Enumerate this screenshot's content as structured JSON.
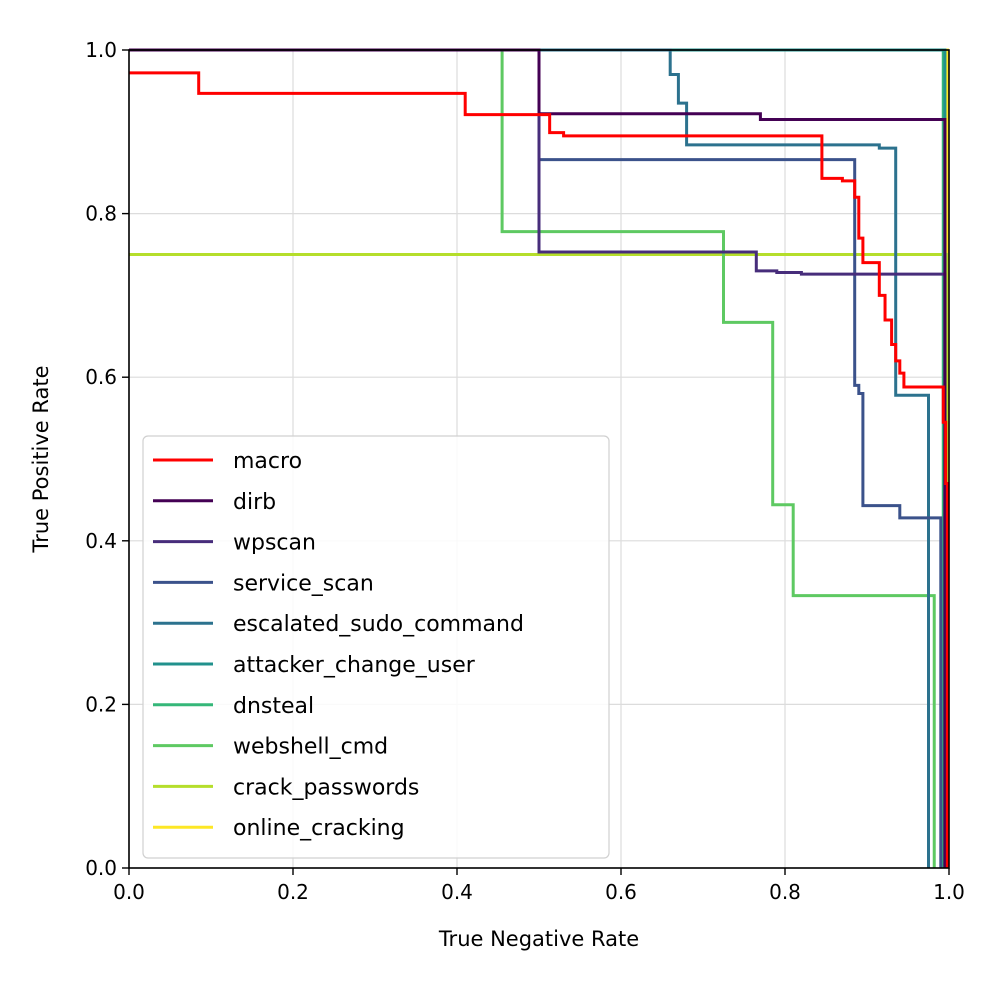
{
  "chart_data": {
    "type": "line",
    "title": "",
    "xlabel": "True Negative Rate",
    "ylabel": "True Positive Rate",
    "xlim": [
      0.0,
      1.0
    ],
    "ylim": [
      0.0,
      1.0
    ],
    "xticks": [
      "0.0",
      "0.2",
      "0.4",
      "0.6",
      "0.8",
      "1.0"
    ],
    "yticks": [
      "0.0",
      "0.2",
      "0.4",
      "0.6",
      "0.8",
      "1.0"
    ],
    "xtick_values": [
      0.0,
      0.2,
      0.4,
      0.6,
      0.8,
      1.0
    ],
    "ytick_values": [
      0.0,
      0.2,
      0.4,
      0.6,
      0.8,
      1.0
    ],
    "grid": true,
    "legend_position": "lower-left",
    "series": [
      {
        "name": "online_cracking",
        "color": "#fde725",
        "x": [
          0.0,
          0.998,
          0.998
        ],
        "y": [
          1.0,
          1.0,
          0.0
        ]
      },
      {
        "name": "crack_passwords",
        "color": "#b5de2b",
        "x": [
          0.0,
          0.997,
          0.997
        ],
        "y": [
          0.75,
          0.75,
          0.0
        ]
      },
      {
        "name": "dnsteal",
        "color": "#35b779",
        "x": [
          0.0,
          0.993,
          0.993
        ],
        "y": [
          1.0,
          1.0,
          0.0
        ]
      },
      {
        "name": "attacker_change_user",
        "color": "#21918c",
        "x": [
          0.0,
          0.995,
          0.995
        ],
        "y": [
          1.0,
          1.0,
          0.0
        ]
      },
      {
        "name": "webshell_cmd",
        "color": "#5ec962",
        "x": [
          0.0,
          0.455,
          0.455,
          0.725,
          0.725,
          0.785,
          0.785,
          0.81,
          0.81,
          0.982,
          0.982
        ],
        "y": [
          1.0,
          1.0,
          0.778,
          0.778,
          0.667,
          0.667,
          0.444,
          0.444,
          0.333,
          0.333,
          0.0
        ]
      },
      {
        "name": "escalated_sudo_command",
        "color": "#2c728e",
        "x": [
          0.0,
          0.66,
          0.66,
          0.67,
          0.67,
          0.68,
          0.68,
          0.915,
          0.915,
          0.935,
          0.935,
          0.975,
          0.975
        ],
        "y": [
          1.0,
          1.0,
          0.97,
          0.97,
          0.935,
          0.935,
          0.884,
          0.884,
          0.88,
          0.88,
          0.578,
          0.578,
          0.0
        ]
      },
      {
        "name": "service_scan",
        "color": "#3b528b",
        "x": [
          0.0,
          0.5,
          0.5,
          0.87,
          0.87,
          0.885,
          0.885,
          0.89,
          0.89,
          0.895,
          0.895,
          0.94,
          0.94,
          0.99,
          0.99
        ],
        "y": [
          1.0,
          1.0,
          0.866,
          0.866,
          0.866,
          0.866,
          0.59,
          0.59,
          0.58,
          0.58,
          0.443,
          0.443,
          0.428,
          0.428,
          0.0
        ]
      },
      {
        "name": "wpscan",
        "color": "#472d7b",
        "x": [
          0.0,
          0.5,
          0.5,
          0.765,
          0.765,
          0.79,
          0.79,
          0.82,
          0.82,
          0.995,
          0.995
        ],
        "y": [
          1.0,
          1.0,
          0.753,
          0.753,
          0.73,
          0.73,
          0.728,
          0.728,
          0.726,
          0.726,
          0.0
        ]
      },
      {
        "name": "dirb",
        "color": "#440154",
        "x": [
          0.0,
          0.5,
          0.5,
          0.77,
          0.77,
          0.995,
          0.995
        ],
        "y": [
          1.0,
          1.0,
          0.922,
          0.922,
          0.915,
          0.915,
          0.0
        ]
      },
      {
        "name": "macro",
        "color": "#ff0000",
        "x": [
          0.0,
          0.085,
          0.085,
          0.41,
          0.41,
          0.513,
          0.513,
          0.53,
          0.53,
          0.845,
          0.845,
          0.87,
          0.87,
          0.885,
          0.885,
          0.89,
          0.89,
          0.895,
          0.895,
          0.915,
          0.915,
          0.922,
          0.922,
          0.93,
          0.93,
          0.935,
          0.935,
          0.94,
          0.94,
          0.945,
          0.945,
          0.993,
          0.993,
          0.996,
          0.996,
          0.998,
          0.998
        ],
        "y": [
          0.972,
          0.972,
          0.947,
          0.947,
          0.921,
          0.921,
          0.899,
          0.899,
          0.895,
          0.895,
          0.843,
          0.843,
          0.84,
          0.84,
          0.82,
          0.82,
          0.77,
          0.77,
          0.74,
          0.74,
          0.7,
          0.7,
          0.67,
          0.67,
          0.64,
          0.64,
          0.62,
          0.62,
          0.605,
          0.605,
          0.588,
          0.588,
          0.545,
          0.545,
          0.47,
          0.47,
          0.0
        ]
      }
    ],
    "legend": [
      {
        "name": "macro",
        "color": "#ff0000"
      },
      {
        "name": "dirb",
        "color": "#440154"
      },
      {
        "name": "wpscan",
        "color": "#472d7b"
      },
      {
        "name": "service_scan",
        "color": "#3b528b"
      },
      {
        "name": "escalated_sudo_command",
        "color": "#2c728e"
      },
      {
        "name": "attacker_change_user",
        "color": "#21918c"
      },
      {
        "name": "dnsteal",
        "color": "#35b779"
      },
      {
        "name": "webshell_cmd",
        "color": "#5ec962"
      },
      {
        "name": "crack_passwords",
        "color": "#b5de2b"
      },
      {
        "name": "online_cracking",
        "color": "#fde725"
      }
    ]
  }
}
